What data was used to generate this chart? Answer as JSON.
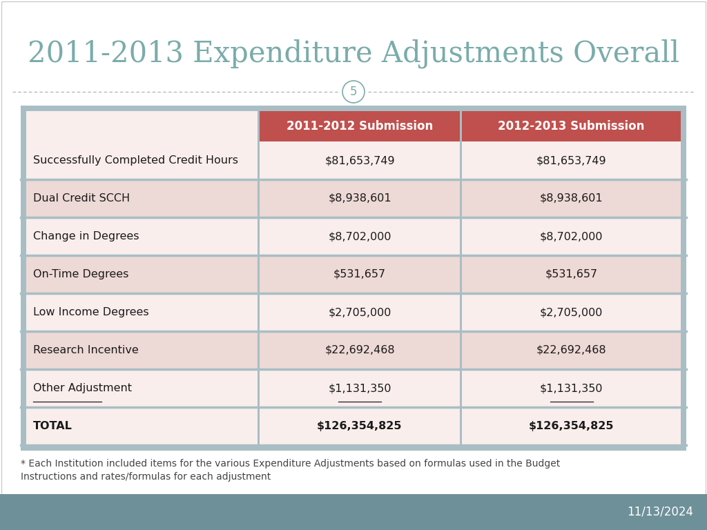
{
  "title": "2011-2013 Expenditure Adjustments Overall",
  "slide_number": "5",
  "background_color": "#ffffff",
  "footer_bg_color": "#6e9099",
  "footer_text": "11/13/2024",
  "table_area_bg": "#a8bec4",
  "header_row_color": "#c0504d",
  "header_text_color": "#ffffff",
  "header_col1": "2011-2012 Submission",
  "header_col2": "2012-2013 Submission",
  "rows": [
    {
      "label": "Successfully Completed Credit Hours",
      "val1": "$81,653,749",
      "val2": "$81,653,749",
      "shaded": false,
      "underline": false,
      "bold": false
    },
    {
      "label": "Dual Credit SCCH",
      "val1": "$8,938,601",
      "val2": "$8,938,601",
      "shaded": true,
      "underline": false,
      "bold": false
    },
    {
      "label": "Change in Degrees",
      "val1": "$8,702,000",
      "val2": "$8,702,000",
      "shaded": false,
      "underline": false,
      "bold": false
    },
    {
      "label": "On-Time Degrees",
      "val1": "$531,657",
      "val2": "$531,657",
      "shaded": true,
      "underline": false,
      "bold": false
    },
    {
      "label": "Low Income Degrees",
      "val1": "$2,705,000",
      "val2": "$2,705,000",
      "shaded": false,
      "underline": false,
      "bold": false
    },
    {
      "label": "Research Incentive",
      "val1": "$22,692,468",
      "val2": "$22,692,468",
      "shaded": true,
      "underline": false,
      "bold": false
    },
    {
      "label": "Other Adjustment",
      "val1": "$1,131,350",
      "val2": "$1,131,350",
      "shaded": false,
      "underline": true,
      "bold": false
    },
    {
      "label": "TOTAL",
      "val1": "$126,354,825",
      "val2": "$126,354,825",
      "shaded": false,
      "underline": false,
      "bold": true
    }
  ],
  "row_shaded_color": "#edd9d5",
  "row_unshaded_color": "#f9eeec",
  "total_row_color": "#f9eeec",
  "footnote": "* Each Institution included items for the various Expenditure Adjustments based on formulas used in the Budget\nInstructions and rates/formulas for each adjustment",
  "title_color": "#7aacaa",
  "divider_color": "#aaaaaa",
  "circle_border_color": "#7aacaa",
  "circle_text_color": "#7aacaa",
  "footnote_color": "#444444"
}
